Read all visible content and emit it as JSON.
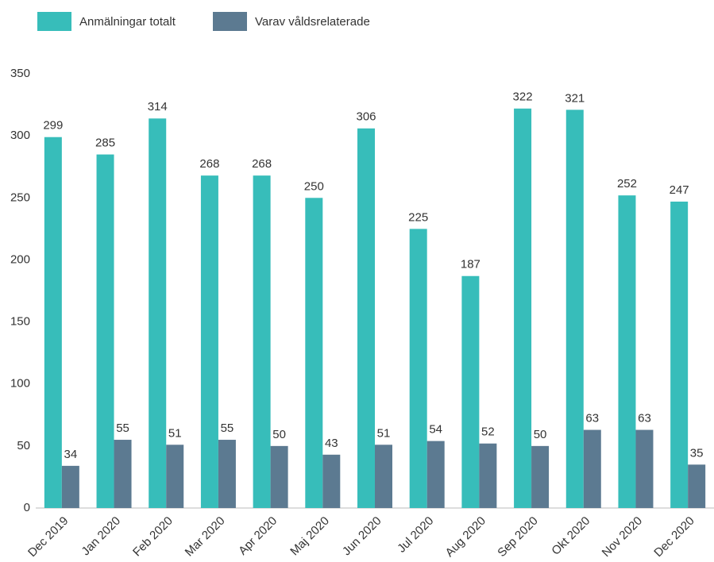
{
  "chart_data": {
    "type": "bar",
    "categories": [
      "Dec 2019",
      "Jan 2020",
      "Feb 2020",
      "Mar 2020",
      "Apr 2020",
      "Maj 2020",
      "Jun 2020",
      "Jul 2020",
      "Aug 2020",
      "Sep 2020",
      "Okt 2020",
      "Nov 2020",
      "Dec 2020"
    ],
    "series": [
      {
        "name": "Anmälningar totalt",
        "color": "#37bdba",
        "values": [
          299,
          285,
          314,
          268,
          268,
          250,
          306,
          225,
          187,
          322,
          321,
          252,
          247
        ]
      },
      {
        "name": "Varav våldsrelaterade",
        "color": "#5c7a91",
        "values": [
          34,
          55,
          51,
          55,
          50,
          43,
          51,
          54,
          52,
          50,
          63,
          63,
          35
        ]
      }
    ],
    "ylim": [
      0,
      350
    ],
    "yticks": [
      0,
      50,
      100,
      150,
      200,
      250,
      300,
      350
    ],
    "grid": false,
    "legend": "top-left"
  }
}
